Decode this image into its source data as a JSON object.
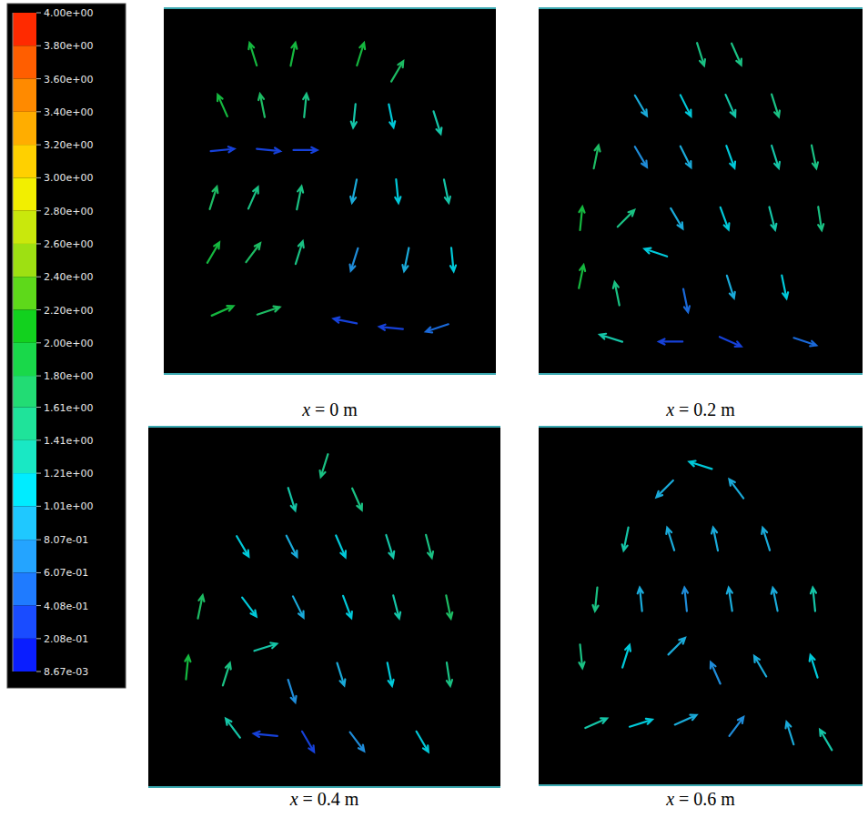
{
  "chart_data": {
    "type": "vector",
    "tick_labels": false,
    "colorbar": {
      "range": [
        0.00867,
        4.0
      ],
      "ticks": [
        {
          "value": 4.0,
          "label": "4.00e+00"
        },
        {
          "value": 3.8,
          "label": "3.80e+00"
        },
        {
          "value": 3.6,
          "label": "3.60e+00"
        },
        {
          "value": 3.4,
          "label": "3.40e+00"
        },
        {
          "value": 3.2,
          "label": "3.20e+00"
        },
        {
          "value": 3.0,
          "label": "3.00e+00"
        },
        {
          "value": 2.8,
          "label": "2.80e+00"
        },
        {
          "value": 2.6,
          "label": "2.60e+00"
        },
        {
          "value": 2.4,
          "label": "2.40e+00"
        },
        {
          "value": 2.2,
          "label": "2.20e+00"
        },
        {
          "value": 2.0,
          "label": "2.00e+00"
        },
        {
          "value": 1.8,
          "label": "1.80e+00"
        },
        {
          "value": 1.61,
          "label": "1.61e+00"
        },
        {
          "value": 1.41,
          "label": "1.41e+00"
        },
        {
          "value": 1.21,
          "label": "1.21e+00"
        },
        {
          "value": 1.01,
          "label": "1.01e+00"
        },
        {
          "value": 0.807,
          "label": "8.07e-01"
        },
        {
          "value": 0.607,
          "label": "6.07e-01"
        },
        {
          "value": 0.408,
          "label": "4.08e-01"
        },
        {
          "value": 0.208,
          "label": "2.08e-01"
        },
        {
          "value": 0.00867,
          "label": "8.67e-03"
        }
      ],
      "colors": [
        "#ff2a00",
        "#ff5e00",
        "#ff8a00",
        "#ffad00",
        "#ffd000",
        "#f2ef00",
        "#c9e80c",
        "#9ee012",
        "#5ed91a",
        "#12d11e",
        "#19d84a",
        "#22dc74",
        "#1fe39a",
        "#19e8c4",
        "#00ecff",
        "#1fc8ff",
        "#24a4ff",
        "#1f7bff",
        "#1a4cff",
        "#0a1eff"
      ]
    },
    "panels": [
      {
        "title": "x = 0 m",
        "xlim": [
          0,
          1
        ],
        "ylim": [
          0,
          1
        ],
        "vectors": [
          [
            0.25,
            0.9,
            -0.3,
            0.95,
            1.9
          ],
          [
            0.38,
            0.9,
            0.2,
            0.98,
            1.9
          ],
          [
            0.15,
            0.75,
            -0.4,
            0.9,
            1.8
          ],
          [
            0.28,
            0.75,
            -0.2,
            0.98,
            1.7
          ],
          [
            0.42,
            0.75,
            0.1,
            1,
            1.6
          ],
          [
            0.15,
            0.62,
            1,
            0.1,
            0.4
          ],
          [
            0.3,
            0.62,
            1,
            -0.1,
            0.35
          ],
          [
            0.42,
            0.62,
            1,
            0,
            0.4
          ],
          [
            0.12,
            0.48,
            0.3,
            0.95,
            1.7
          ],
          [
            0.25,
            0.48,
            0.4,
            0.9,
            1.6
          ],
          [
            0.4,
            0.48,
            0.2,
            0.98,
            1.5
          ],
          [
            0.12,
            0.32,
            0.5,
            0.85,
            1.8
          ],
          [
            0.25,
            0.32,
            0.6,
            0.8,
            1.7
          ],
          [
            0.4,
            0.32,
            0.3,
            0.95,
            1.6
          ],
          [
            0.15,
            0.15,
            0.9,
            0.4,
            1.8
          ],
          [
            0.3,
            0.15,
            0.9,
            0.3,
            1.7
          ],
          [
            0.6,
            0.9,
            0.3,
            0.95,
            1.8
          ],
          [
            0.72,
            0.85,
            0.5,
            0.85,
            1.7
          ],
          [
            0.58,
            0.72,
            -0.1,
            -1,
            1.3
          ],
          [
            0.7,
            0.72,
            0.2,
            -0.98,
            1.2
          ],
          [
            0.85,
            0.7,
            0.3,
            -0.95,
            1.4
          ],
          [
            0.58,
            0.5,
            -0.2,
            -0.98,
            1.0
          ],
          [
            0.72,
            0.5,
            0.1,
            -1,
            1.1
          ],
          [
            0.88,
            0.5,
            0.2,
            -0.98,
            1.3
          ],
          [
            0.58,
            0.3,
            -0.3,
            -0.95,
            0.8
          ],
          [
            0.75,
            0.3,
            -0.2,
            -0.98,
            0.9
          ],
          [
            0.9,
            0.3,
            0.1,
            -1,
            1.2
          ],
          [
            0.55,
            0.12,
            -1,
            0.2,
            0.3
          ],
          [
            0.7,
            0.1,
            -1,
            0.1,
            0.35
          ],
          [
            0.85,
            0.1,
            -0.9,
            -0.3,
            0.6
          ]
        ]
      },
      {
        "title": "x = 0.2 m",
        "xlim": [
          0,
          1
        ],
        "ylim": [
          0,
          1
        ],
        "vectors": [
          [
            0.5,
            0.9,
            0.3,
            -0.95,
            1.6
          ],
          [
            0.62,
            0.9,
            0.4,
            -0.9,
            1.6
          ],
          [
            0.3,
            0.75,
            0.5,
            -0.85,
            0.9
          ],
          [
            0.45,
            0.75,
            0.45,
            -0.9,
            1.1
          ],
          [
            0.6,
            0.75,
            0.4,
            -0.9,
            1.3
          ],
          [
            0.75,
            0.75,
            0.3,
            -0.95,
            1.5
          ],
          [
            0.15,
            0.6,
            0.2,
            0.98,
            1.7
          ],
          [
            0.3,
            0.6,
            0.5,
            -0.85,
            0.8
          ],
          [
            0.45,
            0.6,
            0.45,
            -0.9,
            1.0
          ],
          [
            0.6,
            0.6,
            0.35,
            -0.95,
            1.2
          ],
          [
            0.75,
            0.6,
            0.3,
            -0.95,
            1.4
          ],
          [
            0.88,
            0.6,
            0.2,
            -0.98,
            1.6
          ],
          [
            0.1,
            0.42,
            0.1,
            1,
            1.8
          ],
          [
            0.25,
            0.42,
            0.7,
            0.7,
            1.5
          ],
          [
            0.42,
            0.42,
            0.5,
            -0.85,
            1.0
          ],
          [
            0.58,
            0.42,
            0.35,
            -0.95,
            1.1
          ],
          [
            0.74,
            0.42,
            0.25,
            -0.97,
            1.3
          ],
          [
            0.9,
            0.42,
            0.15,
            -0.99,
            1.5
          ],
          [
            0.1,
            0.25,
            0.2,
            0.98,
            1.8
          ],
          [
            0.22,
            0.2,
            -0.2,
            0.98,
            1.6
          ],
          [
            0.35,
            0.32,
            -0.9,
            0.3,
            1.2
          ],
          [
            0.45,
            0.18,
            0.2,
            -0.98,
            0.6
          ],
          [
            0.6,
            0.22,
            0.3,
            -0.95,
            0.9
          ],
          [
            0.78,
            0.22,
            0.2,
            -0.98,
            1.1
          ],
          [
            0.2,
            0.07,
            -0.95,
            0.3,
            1.4
          ],
          [
            0.4,
            0.06,
            -1,
            0,
            0.4
          ],
          [
            0.6,
            0.06,
            0.9,
            -0.4,
            0.4
          ],
          [
            0.85,
            0.06,
            0.9,
            -0.3,
            0.5
          ]
        ]
      },
      {
        "title": "x = 0.4 m",
        "xlim": [
          0,
          1
        ],
        "ylim": [
          0,
          1
        ],
        "vectors": [
          [
            0.5,
            0.92,
            -0.3,
            -0.95,
            1.6
          ],
          [
            0.4,
            0.82,
            0.3,
            -0.95,
            1.3
          ],
          [
            0.6,
            0.82,
            0.4,
            -0.9,
            1.5
          ],
          [
            0.25,
            0.68,
            0.5,
            -0.85,
            1.1
          ],
          [
            0.4,
            0.68,
            0.45,
            -0.9,
            1.0
          ],
          [
            0.55,
            0.68,
            0.4,
            -0.92,
            1.1
          ],
          [
            0.7,
            0.68,
            0.3,
            -0.95,
            1.3
          ],
          [
            0.82,
            0.68,
            0.25,
            -0.97,
            1.6
          ],
          [
            0.12,
            0.5,
            0.2,
            0.98,
            1.7
          ],
          [
            0.27,
            0.5,
            0.6,
            -0.8,
            1.2
          ],
          [
            0.42,
            0.5,
            0.45,
            -0.9,
            1.0
          ],
          [
            0.57,
            0.5,
            0.35,
            -0.94,
            1.1
          ],
          [
            0.72,
            0.5,
            0.25,
            -0.97,
            1.3
          ],
          [
            0.88,
            0.5,
            0.2,
            -0.98,
            1.7
          ],
          [
            0.08,
            0.32,
            0.1,
            1,
            1.8
          ],
          [
            0.2,
            0.3,
            0.3,
            0.95,
            1.6
          ],
          [
            0.32,
            0.38,
            0.95,
            0.3,
            1.3
          ],
          [
            0.4,
            0.25,
            0.3,
            -0.95,
            0.7
          ],
          [
            0.55,
            0.3,
            0.3,
            -0.95,
            1.0
          ],
          [
            0.7,
            0.3,
            0.2,
            -0.98,
            1.2
          ],
          [
            0.88,
            0.3,
            0.15,
            -0.99,
            1.6
          ],
          [
            0.22,
            0.14,
            -0.6,
            0.8,
            1.4
          ],
          [
            0.32,
            0.12,
            -1,
            0.1,
            0.4
          ],
          [
            0.45,
            0.1,
            0.5,
            -0.85,
            0.4
          ],
          [
            0.6,
            0.1,
            0.6,
            -0.8,
            0.7
          ],
          [
            0.8,
            0.1,
            0.5,
            -0.85,
            1.1
          ]
        ]
      },
      {
        "title": "x = 0.6 m",
        "xlim": [
          0,
          1
        ],
        "ylim": [
          0,
          1
        ],
        "vectors": [
          [
            0.5,
            0.92,
            -0.95,
            0.3,
            1.1
          ],
          [
            0.38,
            0.85,
            -0.7,
            -0.7,
            1.0
          ],
          [
            0.62,
            0.85,
            -0.6,
            0.8,
            1.0
          ],
          [
            0.25,
            0.7,
            -0.2,
            -0.98,
            1.3
          ],
          [
            0.4,
            0.7,
            -0.3,
            0.95,
            0.9
          ],
          [
            0.55,
            0.7,
            -0.2,
            0.98,
            0.9
          ],
          [
            0.72,
            0.7,
            -0.3,
            0.95,
            1.0
          ],
          [
            0.15,
            0.52,
            -0.1,
            -1,
            1.5
          ],
          [
            0.3,
            0.52,
            -0.1,
            0.99,
            1.0
          ],
          [
            0.45,
            0.52,
            -0.1,
            0.99,
            0.8
          ],
          [
            0.6,
            0.52,
            -0.15,
            0.99,
            0.9
          ],
          [
            0.75,
            0.52,
            -0.2,
            0.98,
            1.0
          ],
          [
            0.88,
            0.52,
            -0.1,
            0.99,
            1.3
          ],
          [
            0.1,
            0.35,
            0.1,
            -1,
            1.6
          ],
          [
            0.25,
            0.35,
            0.3,
            0.95,
            1.2
          ],
          [
            0.42,
            0.38,
            0.7,
            0.7,
            0.9
          ],
          [
            0.55,
            0.3,
            -0.4,
            0.9,
            0.8
          ],
          [
            0.7,
            0.32,
            -0.5,
            0.85,
            0.9
          ],
          [
            0.88,
            0.32,
            -0.3,
            0.95,
            1.2
          ],
          [
            0.15,
            0.15,
            0.9,
            0.4,
            1.4
          ],
          [
            0.3,
            0.15,
            0.95,
            0.3,
            1.1
          ],
          [
            0.45,
            0.16,
            0.9,
            0.4,
            0.9
          ],
          [
            0.62,
            0.14,
            0.6,
            0.8,
            0.8
          ],
          [
            0.8,
            0.12,
            -0.3,
            0.95,
            1.0
          ],
          [
            0.92,
            0.1,
            -0.5,
            0.85,
            1.3
          ]
        ]
      }
    ]
  }
}
